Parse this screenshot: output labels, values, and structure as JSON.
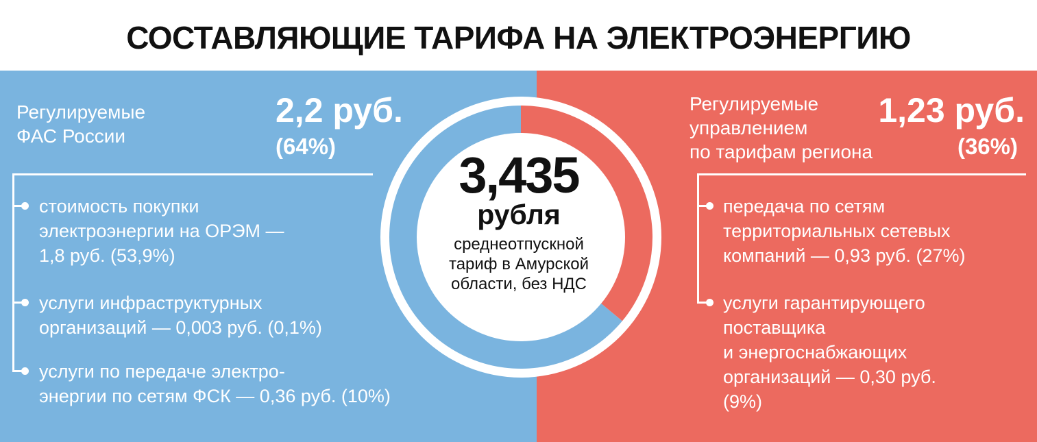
{
  "title": "СОСТАВЛЯЮЩИЕ ТАРИФА НА ЭЛЕКТРОЭНЕРГИЮ",
  "center": {
    "value": "3,435",
    "unit": "рубля",
    "description": "среднеотпускной тариф в Амурской области, без НДС"
  },
  "left": {
    "category_lines": [
      "Регулируемые",
      "ФАС России"
    ],
    "value": "2,2 руб.",
    "share": "(64%)",
    "items": [
      {
        "lines": [
          "стоимость покупки",
          "электроэнергии на ОРЭМ —",
          "1,8 руб. (53,9%)"
        ]
      },
      {
        "lines": [
          "услуги инфраструктурных",
          "организаций — 0,003 руб. (0,1%)"
        ]
      },
      {
        "lines": [
          "услуги по передаче электро-",
          "энергии по сетям ФСК — 0,36 руб. (10%)"
        ]
      }
    ]
  },
  "right": {
    "category_lines": [
      "Регулируемые",
      "управлением",
      "по тарифам региона"
    ],
    "value": "1,23 руб.",
    "share": "(36%)",
    "items": [
      {
        "lines": [
          "передача по сетям",
          "территориальных сетевых",
          "компаний — 0,93 руб. (27%)"
        ]
      },
      {
        "lines": [
          "услуги гарантирующего",
          "поставщика",
          "и энергоснабжающих",
          "организаций — 0,30 руб.",
          "(9%)"
        ]
      }
    ]
  },
  "chart_data": {
    "type": "pie",
    "categories": [
      "Регулируемые ФАС России",
      "Регулируемые управлением по тарифам региона"
    ],
    "values": [
      64,
      36
    ],
    "colors": [
      "#7ab4df",
      "#ec6a5f"
    ]
  }
}
